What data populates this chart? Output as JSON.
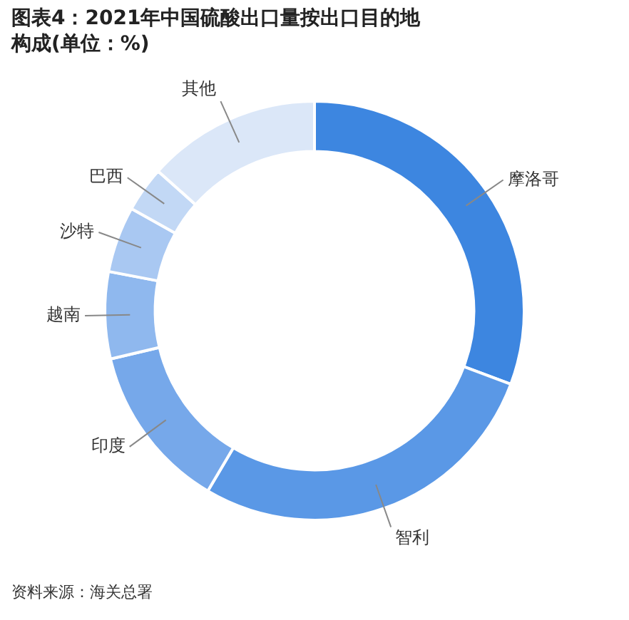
{
  "chart_data": {
    "type": "donut",
    "title": "图表4：2021年中国硫酸出口量按出口目的地构成(单位：%)",
    "categories": [
      "摩洛哥",
      "智利",
      "印度",
      "越南",
      "沙特",
      "巴西",
      "其他"
    ],
    "values": [
      30.7,
      27.8,
      12.8,
      6.7,
      5.1,
      3.5,
      13.4
    ],
    "colors": [
      "#3d86e0",
      "#5a98e6",
      "#76a8ea",
      "#8fb8ee",
      "#a9c8f2",
      "#c2d8f5",
      "#dbe7f8"
    ],
    "legend": false,
    "annotations": [
      "资料来源：海关总署"
    ]
  }
}
